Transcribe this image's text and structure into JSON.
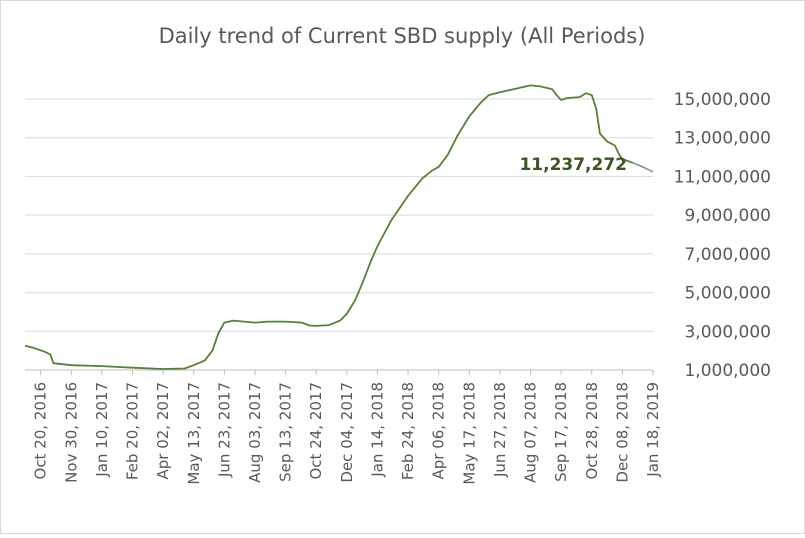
{
  "chart_data": {
    "type": "line",
    "title": "Daily trend of Current SBD supply (All Periods)",
    "xlabel": "",
    "ylabel": "",
    "grid": true,
    "legend": "none",
    "colors": {
      "line": "#548235",
      "tail": "#8c8c8c",
      "annotation": "#375623",
      "grid": "#d9d9d9",
      "text": "#595959"
    },
    "x_range": [
      "2016-09-29",
      "2019-01-18"
    ],
    "ylim": [
      1000000,
      16000000
    ],
    "y_ticks": [
      1000000,
      3000000,
      5000000,
      7000000,
      9000000,
      11000000,
      13000000,
      15000000
    ],
    "y_tick_labels": [
      "1,000,000",
      "3,000,000",
      "5,000,000",
      "7,000,000",
      "9,000,000",
      "11,000,000",
      "13,000,000",
      "15,000,000"
    ],
    "x_ticks": [
      "2016-10-20",
      "2016-11-30",
      "2017-01-10",
      "2017-02-20",
      "2017-04-02",
      "2017-05-13",
      "2017-06-23",
      "2017-08-03",
      "2017-09-13",
      "2017-10-24",
      "2017-12-04",
      "2018-01-14",
      "2018-02-24",
      "2018-04-06",
      "2018-05-17",
      "2018-06-27",
      "2018-08-07",
      "2018-09-17",
      "2018-10-28",
      "2018-12-08",
      "2019-01-18"
    ],
    "x_tick_labels": [
      "Oct 20, 2016",
      "Nov 30, 2016",
      "Jan 10, 2017",
      "Feb 20, 2017",
      "Apr 02, 2017",
      "May 13, 2017",
      "Jun 23, 2017",
      "Aug 03, 2017",
      "Sep 13, 2017",
      "Oct 24, 2017",
      "Dec 04, 2017",
      "Jan 14, 2018",
      "Feb 24, 2018",
      "Apr 06, 2018",
      "May 17, 2018",
      "Jun 27, 2018",
      "Aug 07, 2018",
      "Sep 17, 2018",
      "Oct 28, 2018",
      "Dec 08, 2018",
      "Jan 18, 2019"
    ],
    "series": [
      {
        "values": [
          [
            "2016-09-29",
            2250000
          ],
          [
            "2016-10-10",
            2150000
          ],
          [
            "2016-10-25",
            1950000
          ],
          [
            "2016-11-02",
            1800000
          ],
          [
            "2016-11-06",
            1350000
          ],
          [
            "2016-11-30",
            1250000
          ],
          [
            "2017-01-10",
            1200000
          ],
          [
            "2017-02-20",
            1120000
          ],
          [
            "2017-04-02",
            1050000
          ],
          [
            "2017-05-01",
            1080000
          ],
          [
            "2017-05-13",
            1250000
          ],
          [
            "2017-05-28",
            1500000
          ],
          [
            "2017-06-07",
            2000000
          ],
          [
            "2017-06-15",
            2900000
          ],
          [
            "2017-06-23",
            3450000
          ],
          [
            "2017-07-05",
            3550000
          ],
          [
            "2017-08-03",
            3450000
          ],
          [
            "2017-08-20",
            3500000
          ],
          [
            "2017-09-13",
            3500000
          ],
          [
            "2017-10-05",
            3450000
          ],
          [
            "2017-10-15",
            3300000
          ],
          [
            "2017-10-24",
            3280000
          ],
          [
            "2017-11-10",
            3320000
          ],
          [
            "2017-11-25",
            3550000
          ],
          [
            "2017-12-04",
            3900000
          ],
          [
            "2017-12-15",
            4600000
          ],
          [
            "2017-12-25",
            5500000
          ],
          [
            "2018-01-05",
            6600000
          ],
          [
            "2018-01-14",
            7400000
          ],
          [
            "2018-02-01",
            8700000
          ],
          [
            "2018-02-24",
            10000000
          ],
          [
            "2018-03-15",
            10900000
          ],
          [
            "2018-03-28",
            11300000
          ],
          [
            "2018-04-06",
            11500000
          ],
          [
            "2018-04-18",
            12100000
          ],
          [
            "2018-05-01",
            13100000
          ],
          [
            "2018-05-17",
            14100000
          ],
          [
            "2018-06-01",
            14800000
          ],
          [
            "2018-06-12",
            15200000
          ],
          [
            "2018-06-27",
            15350000
          ],
          [
            "2018-07-15",
            15500000
          ],
          [
            "2018-08-07",
            15700000
          ],
          [
            "2018-08-20",
            15650000
          ],
          [
            "2018-09-05",
            15500000
          ],
          [
            "2018-09-12",
            15150000
          ],
          [
            "2018-09-17",
            14950000
          ],
          [
            "2018-09-25",
            15050000
          ],
          [
            "2018-10-12",
            15100000
          ],
          [
            "2018-10-20",
            15300000
          ],
          [
            "2018-10-28",
            15200000
          ],
          [
            "2018-11-03",
            14500000
          ],
          [
            "2018-11-08",
            13200000
          ],
          [
            "2018-11-18",
            12800000
          ],
          [
            "2018-11-28",
            12600000
          ],
          [
            "2018-12-04",
            12100000
          ],
          [
            "2018-12-08",
            11900000
          ],
          [
            "2018-12-22",
            11700000
          ]
        ]
      },
      {
        "values": [
          [
            "2018-12-22",
            11700000
          ],
          [
            "2019-01-04",
            11500000
          ],
          [
            "2019-01-12",
            11350000
          ],
          [
            "2019-01-18",
            11237272
          ]
        ]
      }
    ],
    "annotations": [
      {
        "text": "11,237,272",
        "x": "2019-01-18",
        "y": 11237272
      }
    ]
  }
}
